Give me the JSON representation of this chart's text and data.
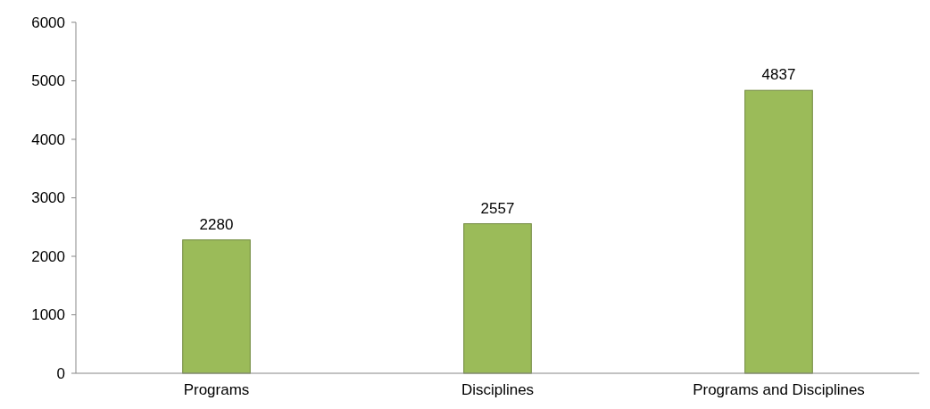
{
  "chart_data": {
    "type": "bar",
    "categories": [
      "Programs",
      "Disciplines",
      "Programs and Disciplines"
    ],
    "values": [
      2280,
      2557,
      4837
    ],
    "color": "#9bbb59",
    "ylim": [
      0,
      6000
    ],
    "yticks": [
      0,
      1000,
      2000,
      3000,
      4000,
      5000,
      6000
    ],
    "data_labels": true,
    "grid": false
  }
}
